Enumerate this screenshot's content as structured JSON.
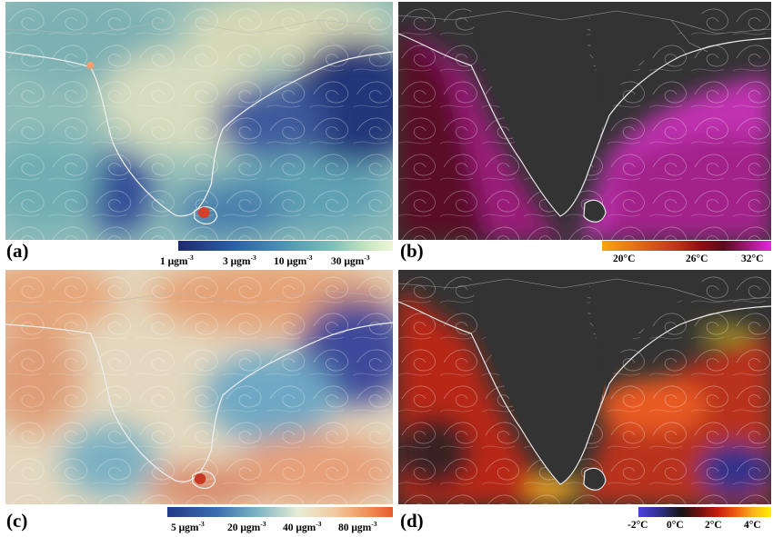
{
  "panels": [
    {
      "id": "a",
      "label": "(a)",
      "colorbar_ticks": [
        "1 μgm",
        "3 μgm",
        "10 μgm",
        "30 μgm"
      ],
      "tick_exponent": "-3",
      "colors": [
        "#1d2a6e",
        "#2b5ea8",
        "#4e96b4",
        "#7fbfb8",
        "#c5e6c0",
        "#f0f6d8"
      ]
    },
    {
      "id": "b",
      "label": "(b)",
      "colorbar_ticks": [
        "20°C",
        "26°C",
        "32°C"
      ],
      "colors": [
        "#f6a512",
        "#c03a1c",
        "#8e1012",
        "#5a0a1c",
        "#9a1a78",
        "#e426e0"
      ]
    },
    {
      "id": "c",
      "label": "(c)",
      "colorbar_ticks": [
        "5 μgm",
        "20 μgm",
        "40 μgm",
        "80 μgm"
      ],
      "tick_exponent": "-3",
      "colors": [
        "#223a86",
        "#3c6fae",
        "#7db4c4",
        "#e8edd6",
        "#f3caa0",
        "#e65a2c"
      ]
    },
    {
      "id": "d",
      "label": "(d)",
      "colorbar_ticks": [
        "-2°C",
        "0°C",
        "2°C",
        "4°C"
      ],
      "colors": [
        "#4a40e0",
        "#151515",
        "#c81e10",
        "#f06012",
        "#f8b020",
        "#fff000"
      ]
    }
  ],
  "style": {
    "land_color_ocean_maps": "#333333",
    "coastline_color": "#e8e8e8",
    "boundary_color": "#9a9a9a"
  }
}
